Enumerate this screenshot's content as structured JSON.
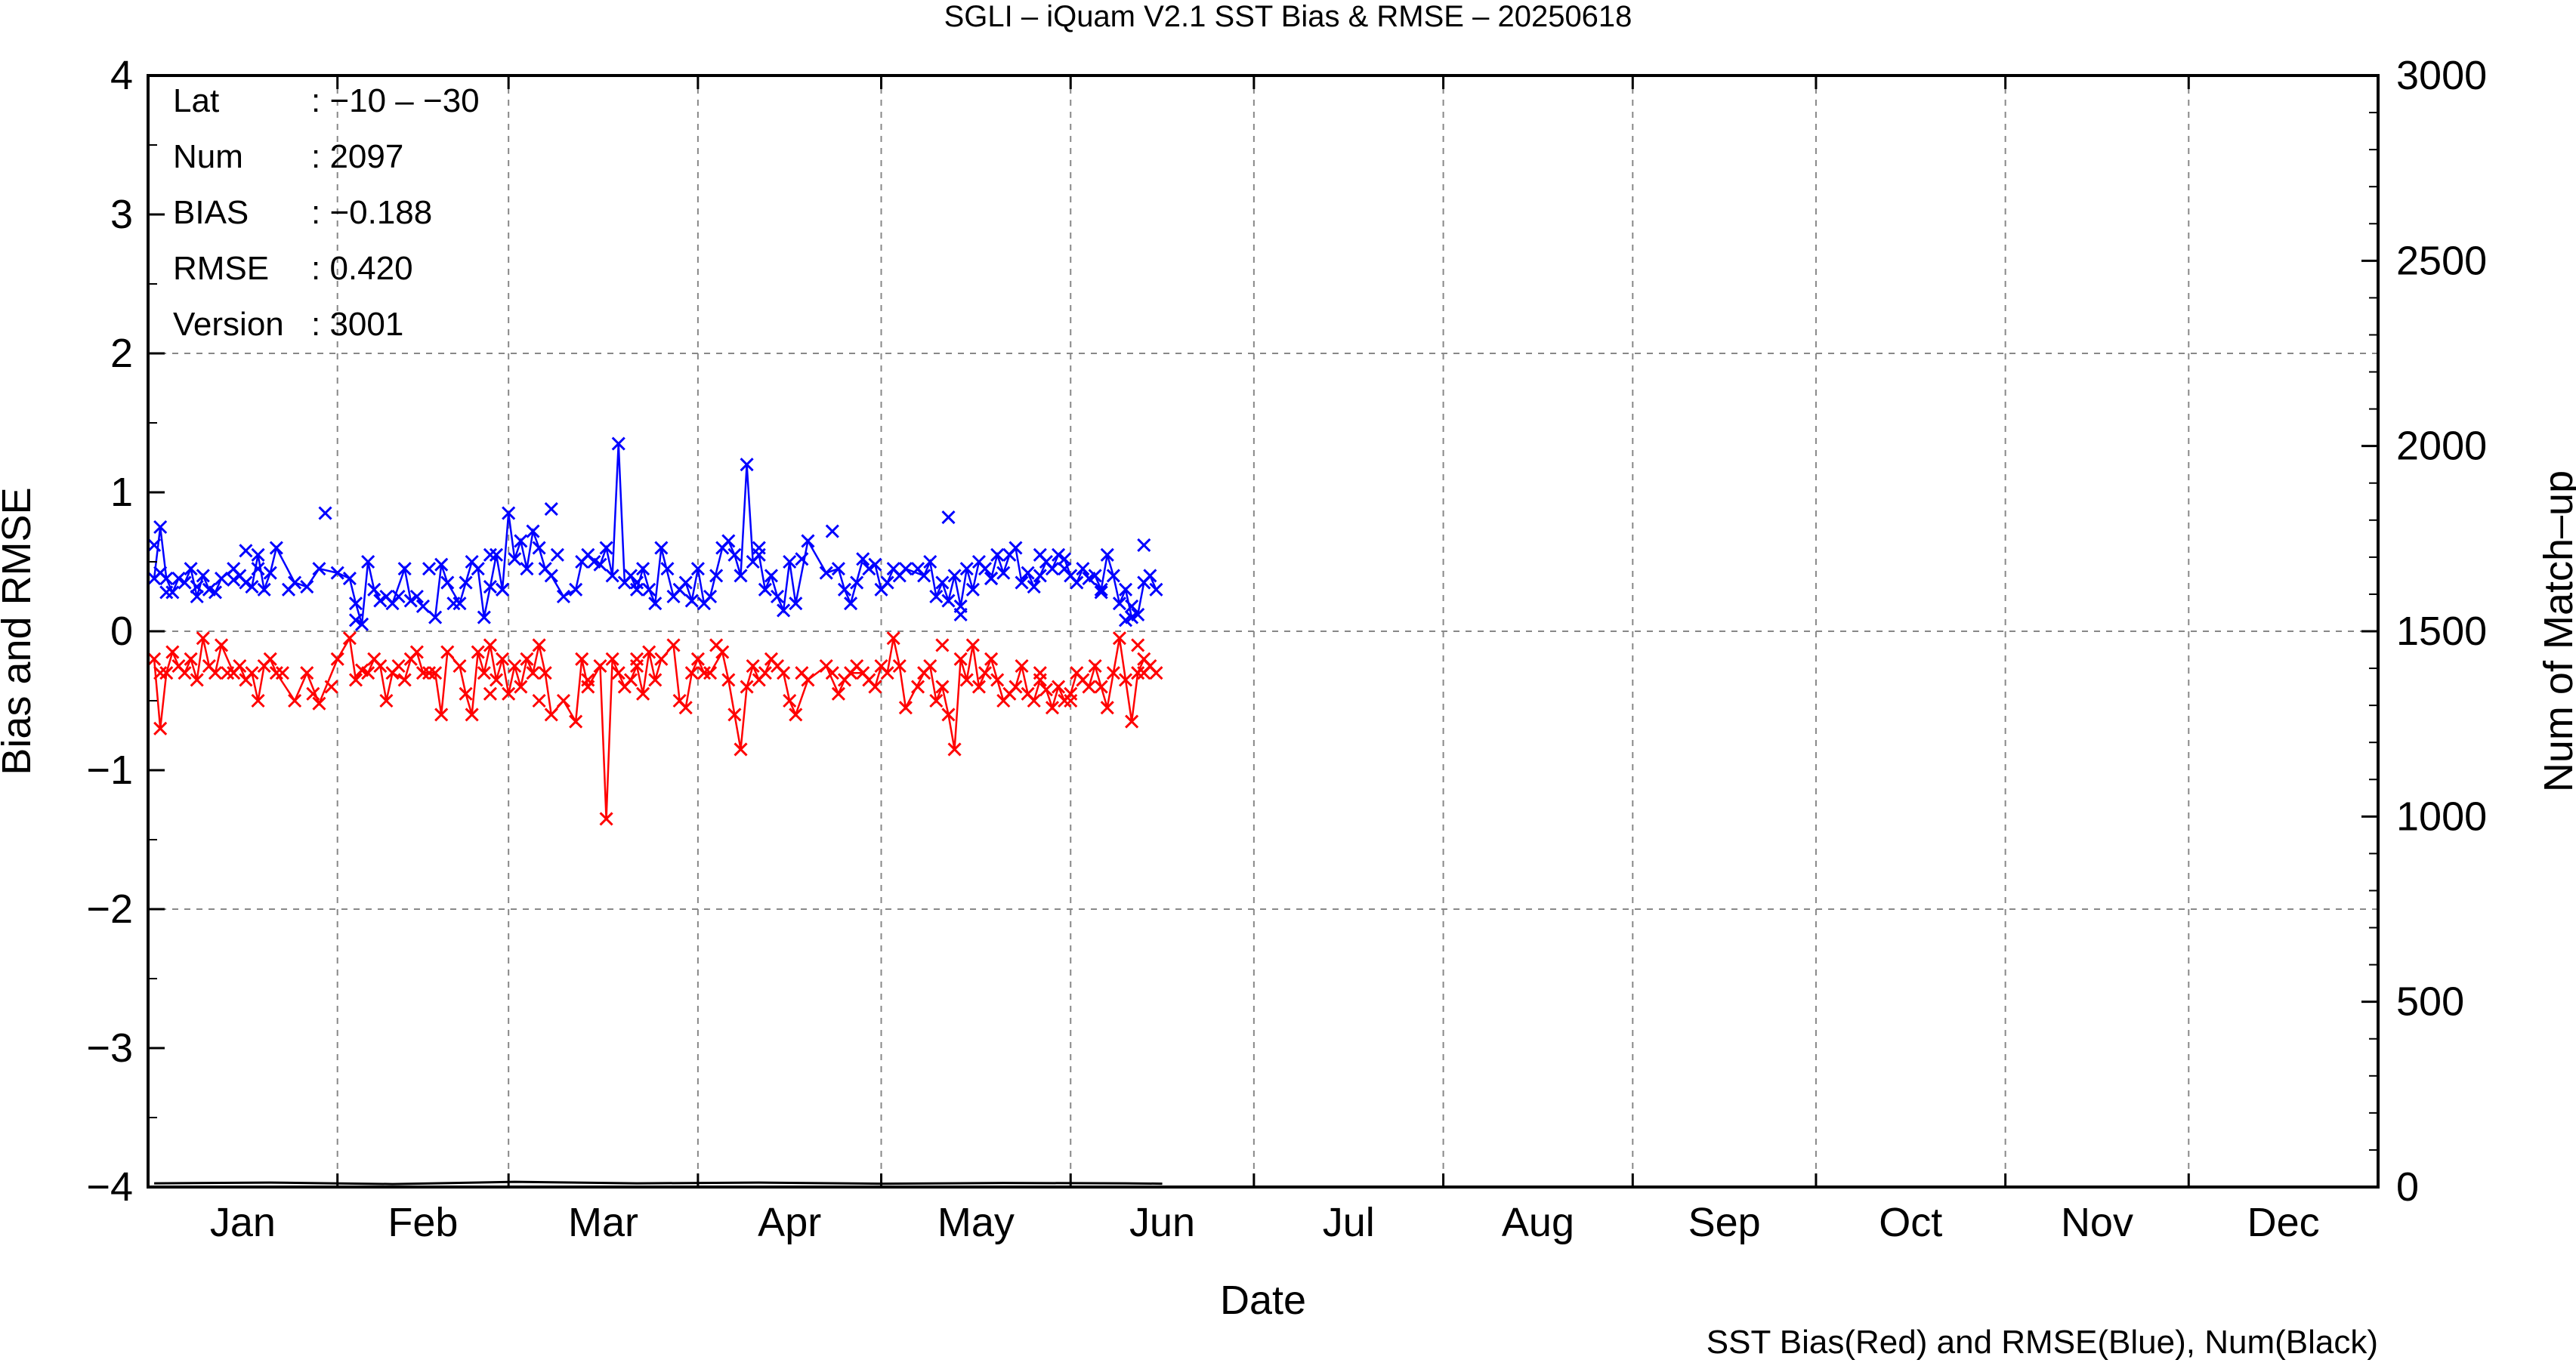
{
  "chart_data": {
    "type": "line",
    "title": "SGLI – iQuam V2.1 SST Bias & RMSE  – 20250618",
    "xlabel": "Date",
    "ylabel": "Bias and RMSE",
    "y2label": "Num of Match–up",
    "footnote": "SST Bias(Red) and RMSE(Blue), Num(Black)",
    "x_ticks": [
      "Jan",
      "Feb",
      "Mar",
      "Apr",
      "May",
      "Jun",
      "Jul",
      "Aug",
      "Sep",
      "Oct",
      "Nov",
      "Dec"
    ],
    "y_ticks": [
      "−4",
      "−3",
      "−2",
      "−1",
      "0",
      "1",
      "2",
      "3",
      "4"
    ],
    "y2_ticks": [
      "0",
      "500",
      "1000",
      "1500",
      "2000",
      "2500",
      "3000"
    ],
    "ylim": [
      -4,
      4
    ],
    "y2lim": [
      0,
      3000
    ],
    "grid": true,
    "stats": [
      {
        "key": "Lat",
        "value": ": −10 – −30"
      },
      {
        "key": "Num",
        "value": ": 2097"
      },
      {
        "key": "BIAS",
        "value": ": −0.188"
      },
      {
        "key": "RMSE",
        "value": ": 0.420"
      },
      {
        "key": "Version",
        "value": ": 3001"
      }
    ],
    "series": [
      {
        "color": "#0000ff",
        "x": [
          1,
          2,
          3,
          4,
          5,
          6,
          7,
          8,
          9,
          10,
          11,
          12,
          14,
          15,
          16,
          17,
          18,
          19,
          20,
          21,
          24,
          26,
          28,
          31,
          33,
          34,
          35,
          36,
          37,
          38,
          39,
          40,
          42,
          43,
          44,
          45,
          47,
          48,
          49,
          51,
          52,
          53,
          54,
          55,
          56,
          57,
          58,
          59,
          60,
          61,
          62,
          63,
          64,
          65,
          66,
          68,
          70,
          71,
          72,
          74,
          75,
          76,
          77,
          78,
          79,
          80,
          81,
          82,
          83,
          84,
          86,
          87,
          88,
          89,
          90,
          91,
          92,
          94,
          95,
          96,
          97,
          98,
          99,
          100,
          101,
          102,
          103,
          104,
          105,
          106,
          108,
          111,
          113,
          114,
          115,
          117,
          118,
          119,
          120,
          121,
          122,
          123,
          124,
          127,
          128,
          129,
          130,
          131,
          132,
          133,
          134,
          135,
          136,
          137,
          138,
          139,
          140,
          141,
          142,
          143,
          144,
          145,
          146,
          147,
          148,
          149,
          150,
          151,
          152,
          153,
          154,
          155,
          156,
          157,
          158,
          159,
          160,
          161,
          162,
          163,
          164,
          165
        ],
        "values": [
          0.38,
          0.75,
          0.38,
          0.28,
          0.38,
          0.35,
          0.45,
          0.25,
          0.4,
          0.3,
          0.28,
          0.38,
          0.45,
          0.4,
          0.35,
          0.32,
          0.55,
          0.3,
          0.42,
          0.6,
          0.35,
          0.32,
          0.45,
          0.42,
          0.38,
          0.2,
          0.05,
          0.5,
          0.3,
          0.22,
          0.25,
          0.2,
          0.45,
          0.22,
          0.25,
          0.18,
          0.1,
          0.48,
          0.35,
          0.2,
          0.35,
          0.5,
          0.45,
          0.1,
          0.32,
          0.55,
          0.3,
          0.85,
          0.52,
          0.65,
          0.45,
          0.72,
          0.6,
          0.45,
          0.4,
          0.25,
          0.3,
          0.5,
          0.55,
          0.48,
          0.6,
          0.4,
          1.35,
          0.35,
          0.4,
          0.3,
          0.45,
          0.3,
          0.2,
          0.6,
          0.25,
          0.3,
          0.35,
          0.22,
          0.45,
          0.2,
          0.25,
          0.6,
          0.65,
          0.55,
          0.4,
          1.2,
          0.5,
          0.55,
          0.3,
          0.4,
          0.25,
          0.15,
          0.5,
          0.2,
          0.65,
          0.42,
          0.45,
          0.3,
          0.2,
          0.52,
          0.45,
          0.48,
          0.3,
          0.35,
          0.45,
          0.4,
          0.45,
          0.4,
          0.5,
          0.25,
          0.35,
          0.22,
          0.4,
          0.18,
          0.45,
          0.3,
          0.5,
          0.45,
          0.38,
          0.55,
          0.42,
          0.55,
          0.6,
          0.35,
          0.42,
          0.32,
          0.4,
          0.5,
          0.45,
          0.55,
          0.52,
          0.4,
          0.35,
          0.45,
          0.38,
          0.4,
          0.3,
          0.55,
          0.4,
          0.2,
          0.3,
          0.1,
          0.12,
          0.35,
          0.4,
          0.3
        ],
        "points": [
          [
            1,
            0.62
          ],
          [
            2,
            0.42
          ],
          [
            3,
            0.28
          ],
          [
            8,
            0.32
          ],
          [
            14,
            0.37
          ],
          [
            16,
            0.58
          ],
          [
            18,
            0.45
          ],
          [
            23,
            0.3
          ],
          [
            29,
            0.85
          ],
          [
            34,
            0.08
          ],
          [
            41,
            0.25
          ],
          [
            46,
            0.45
          ],
          [
            50,
            0.2
          ],
          [
            56,
            0.55
          ],
          [
            58,
            0.3
          ],
          [
            66,
            0.88
          ],
          [
            67,
            0.55
          ],
          [
            73,
            0.5
          ],
          [
            80,
            0.35
          ],
          [
            85,
            0.45
          ],
          [
            93,
            0.4
          ],
          [
            100,
            0.6
          ],
          [
            107,
            0.52
          ],
          [
            112,
            0.72
          ],
          [
            116,
            0.35
          ],
          [
            126,
            0.45
          ],
          [
            131,
            0.82
          ],
          [
            133,
            0.12
          ],
          [
            138,
            0.38
          ],
          [
            146,
            0.55
          ],
          [
            150,
            0.45
          ],
          [
            156,
            0.28
          ],
          [
            160,
            0.08
          ],
          [
            161,
            0.18
          ],
          [
            163,
            0.62
          ]
        ]
      },
      {
        "color": "#ff0000",
        "x": [
          1,
          2,
          3,
          4,
          5,
          6,
          7,
          8,
          9,
          10,
          11,
          12,
          14,
          15,
          16,
          17,
          18,
          19,
          20,
          21,
          24,
          26,
          28,
          31,
          33,
          34,
          35,
          36,
          37,
          38,
          39,
          40,
          42,
          43,
          44,
          45,
          47,
          48,
          49,
          51,
          52,
          53,
          54,
          55,
          56,
          57,
          58,
          59,
          60,
          61,
          62,
          63,
          64,
          65,
          66,
          68,
          70,
          71,
          72,
          74,
          75,
          76,
          77,
          78,
          79,
          80,
          81,
          82,
          83,
          84,
          86,
          87,
          88,
          89,
          90,
          91,
          92,
          94,
          95,
          96,
          97,
          98,
          99,
          100,
          101,
          102,
          103,
          104,
          105,
          106,
          108,
          111,
          113,
          114,
          115,
          117,
          118,
          119,
          120,
          121,
          122,
          123,
          124,
          127,
          128,
          129,
          130,
          131,
          132,
          133,
          134,
          135,
          136,
          137,
          138,
          139,
          140,
          141,
          142,
          143,
          144,
          145,
          146,
          147,
          148,
          149,
          150,
          151,
          152,
          153,
          154,
          155,
          156,
          157,
          158,
          159,
          160,
          161,
          162,
          163,
          164,
          165
        ],
        "values": [
          -0.2,
          -0.7,
          -0.3,
          -0.15,
          -0.25,
          -0.3,
          -0.2,
          -0.35,
          -0.05,
          -0.25,
          -0.3,
          -0.1,
          -0.3,
          -0.25,
          -0.35,
          -0.3,
          -0.5,
          -0.25,
          -0.2,
          -0.3,
          -0.5,
          -0.3,
          -0.52,
          -0.2,
          -0.05,
          -0.35,
          -0.28,
          -0.3,
          -0.2,
          -0.25,
          -0.5,
          -0.3,
          -0.35,
          -0.2,
          -0.15,
          -0.3,
          -0.3,
          -0.6,
          -0.15,
          -0.25,
          -0.45,
          -0.6,
          -0.15,
          -0.3,
          -0.1,
          -0.35,
          -0.2,
          -0.45,
          -0.25,
          -0.4,
          -0.2,
          -0.3,
          -0.1,
          -0.3,
          -0.6,
          -0.5,
          -0.65,
          -0.2,
          -0.4,
          -0.25,
          -1.35,
          -0.2,
          -0.3,
          -0.4,
          -0.35,
          -0.25,
          -0.45,
          -0.15,
          -0.35,
          -0.2,
          -0.1,
          -0.5,
          -0.55,
          -0.3,
          -0.2,
          -0.3,
          -0.3,
          -0.15,
          -0.35,
          -0.6,
          -0.85,
          -0.4,
          -0.25,
          -0.35,
          -0.3,
          -0.2,
          -0.25,
          -0.3,
          -0.5,
          -0.6,
          -0.35,
          -0.25,
          -0.45,
          -0.35,
          -0.3,
          -0.3,
          -0.35,
          -0.4,
          -0.25,
          -0.3,
          -0.05,
          -0.25,
          -0.55,
          -0.3,
          -0.25,
          -0.5,
          -0.4,
          -0.6,
          -0.85,
          -0.2,
          -0.35,
          -0.1,
          -0.4,
          -0.3,
          -0.2,
          -0.35,
          -0.5,
          -0.45,
          -0.4,
          -0.25,
          -0.45,
          -0.5,
          -0.35,
          -0.42,
          -0.55,
          -0.4,
          -0.5,
          -0.45,
          -0.3,
          -0.35,
          -0.4,
          -0.25,
          -0.4,
          -0.55,
          -0.3,
          -0.05,
          -0.35,
          -0.65,
          -0.3,
          -0.2,
          -0.25,
          -0.3
        ],
        "points": [
          [
            2,
            -0.3
          ],
          [
            13,
            -0.3
          ],
          [
            22,
            -0.3
          ],
          [
            27,
            -0.45
          ],
          [
            30,
            -0.4
          ],
          [
            41,
            -0.25
          ],
          [
            46,
            -0.3
          ],
          [
            56,
            -0.45
          ],
          [
            64,
            -0.5
          ],
          [
            72,
            -0.35
          ],
          [
            80,
            -0.2
          ],
          [
            93,
            -0.1
          ],
          [
            107,
            -0.3
          ],
          [
            112,
            -0.3
          ],
          [
            116,
            -0.25
          ],
          [
            126,
            -0.4
          ],
          [
            130,
            -0.1
          ],
          [
            146,
            -0.3
          ],
          [
            151,
            -0.5
          ],
          [
            162,
            -0.1
          ],
          [
            163,
            -0.3
          ]
        ]
      },
      {
        "color": "#000000",
        "axis": "y2",
        "x": [
          1,
          20,
          40,
          60,
          80,
          100,
          120,
          140,
          160,
          166
        ],
        "values": [
          10,
          12,
          8,
          14,
          10,
          12,
          9,
          11,
          10,
          9
        ]
      }
    ]
  }
}
